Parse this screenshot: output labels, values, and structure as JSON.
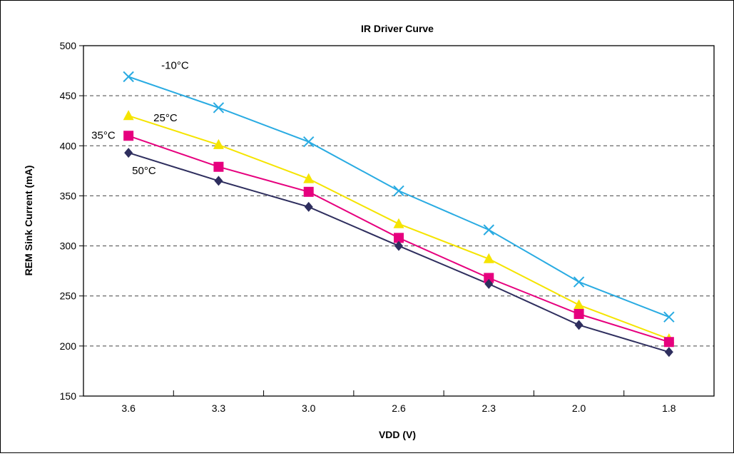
{
  "chart_data": {
    "type": "line",
    "title": "IR Driver Curve",
    "xlabel": "VDD (V)",
    "ylabel": "REM Sink Current (mA)",
    "categories": [
      "3.6",
      "3.3",
      "3.0",
      "2.6",
      "2.3",
      "2.0",
      "1.8"
    ],
    "ylim": [
      150,
      500
    ],
    "yticks": [
      150,
      200,
      250,
      300,
      350,
      400,
      450,
      500
    ],
    "grid": "horizontal-dashed",
    "series": [
      {
        "name": "-10°C",
        "color": "#29ABE2",
        "marker": "x",
        "values": [
          469,
          438,
          404,
          355,
          316,
          264,
          229
        ]
      },
      {
        "name": "25°C",
        "color": "#F5E400",
        "marker": "triangle",
        "values": [
          430,
          401,
          367,
          322,
          287,
          241,
          207
        ]
      },
      {
        "name": "35°C",
        "color": "#E6007E",
        "marker": "square",
        "values": [
          410,
          379,
          354,
          308,
          268,
          232,
          204
        ]
      },
      {
        "name": "50°C",
        "color": "#2E2E5E",
        "marker": "diamond",
        "values": [
          393,
          365,
          339,
          300,
          262,
          221,
          194
        ]
      }
    ]
  }
}
